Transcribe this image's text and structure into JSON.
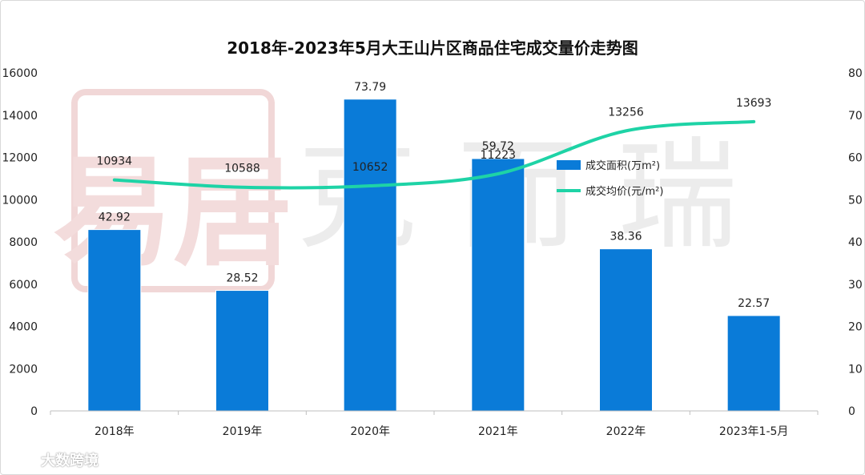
{
  "chart_data": {
    "type": "bar+line",
    "title": "2018年-2023年5月大王山片区商品住宅成交量价走势图",
    "categories": [
      "2018年",
      "2019年",
      "2020年",
      "2021年",
      "2022年",
      "2023年1-5月"
    ],
    "series": [
      {
        "name": "成交面积(万m²)",
        "kind": "bar",
        "axis": "right",
        "values": [
          42.92,
          28.52,
          73.79,
          59.72,
          38.36,
          22.57
        ],
        "labels": [
          "42.92",
          "28.52",
          "73.79",
          "59.72",
          "38.36",
          "22.57"
        ],
        "color": "#0a7bd8"
      },
      {
        "name": "成交均价(元/m²)",
        "kind": "line",
        "axis": "left",
        "values": [
          10934,
          10588,
          10652,
          11223,
          13256,
          13693
        ],
        "labels": [
          "10934",
          "10588",
          "10652",
          "11223",
          "13256",
          "13693"
        ],
        "color": "#1ed3a6"
      }
    ],
    "left_axis": {
      "min": 0,
      "max": 16000,
      "step": 2000,
      "ticks": [
        "0",
        "2000",
        "4000",
        "6000",
        "8000",
        "10000",
        "12000",
        "14000",
        "16000"
      ]
    },
    "right_axis": {
      "min": 0,
      "max": 80,
      "step": 10,
      "ticks": [
        "0",
        "10",
        "20",
        "30",
        "40",
        "50",
        "60",
        "70",
        "80"
      ]
    },
    "legend": {
      "position": "right-center",
      "entries": [
        "成交面积(万m²)",
        "成交均价(元/m²)"
      ]
    }
  },
  "watermark": {
    "seal_text": "易居",
    "brand_text": "克而瑞"
  },
  "footer_logo": {
    "text": "大数跨境"
  }
}
